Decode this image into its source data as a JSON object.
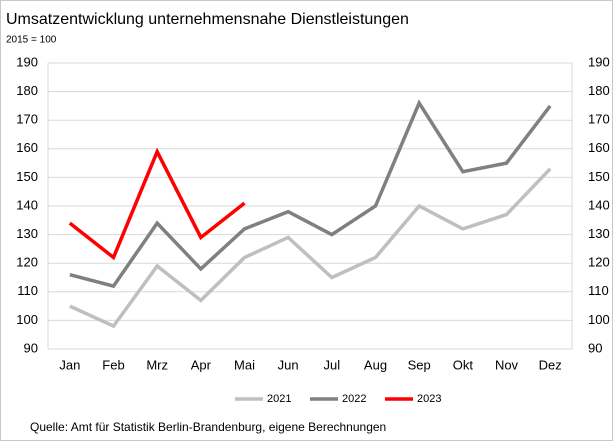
{
  "chart_data": {
    "type": "line",
    "title": "Umsatzentwicklung  unternehmensnahe  Dienstleistungen",
    "subtitle": "2015 = 100",
    "categories": [
      "Jan",
      "Feb",
      "Mrz",
      "Apr",
      "Mai",
      "Jun",
      "Jul",
      "Aug",
      "Sep",
      "Okt",
      "Nov",
      "Dez"
    ],
    "series": [
      {
        "name": "2021",
        "color": "#bfbfbf",
        "values": [
          105,
          98,
          119,
          107,
          122,
          129,
          115,
          122,
          140,
          132,
          137,
          153
        ]
      },
      {
        "name": "2022",
        "color": "#808080",
        "values": [
          116,
          112,
          134,
          118,
          132,
          138,
          130,
          140,
          176,
          152,
          155,
          175
        ]
      },
      {
        "name": "2023",
        "color": "#ff0000",
        "values": [
          134,
          122,
          159,
          129,
          141,
          null,
          null,
          null,
          null,
          null,
          null,
          null
        ]
      }
    ],
    "ylim": [
      90,
      190
    ],
    "yticks": [
      90,
      100,
      110,
      120,
      130,
      140,
      150,
      160,
      170,
      180,
      190
    ],
    "y2lim": [
      90,
      190
    ],
    "y2ticks": [
      90,
      100,
      110,
      120,
      130,
      140,
      150,
      160,
      170,
      180,
      190
    ],
    "grid": true,
    "legend": "bottom",
    "source": "Quelle:  Amt für  Statistik  Berlin-Brandenburg,  eigene  Berechnungen"
  }
}
